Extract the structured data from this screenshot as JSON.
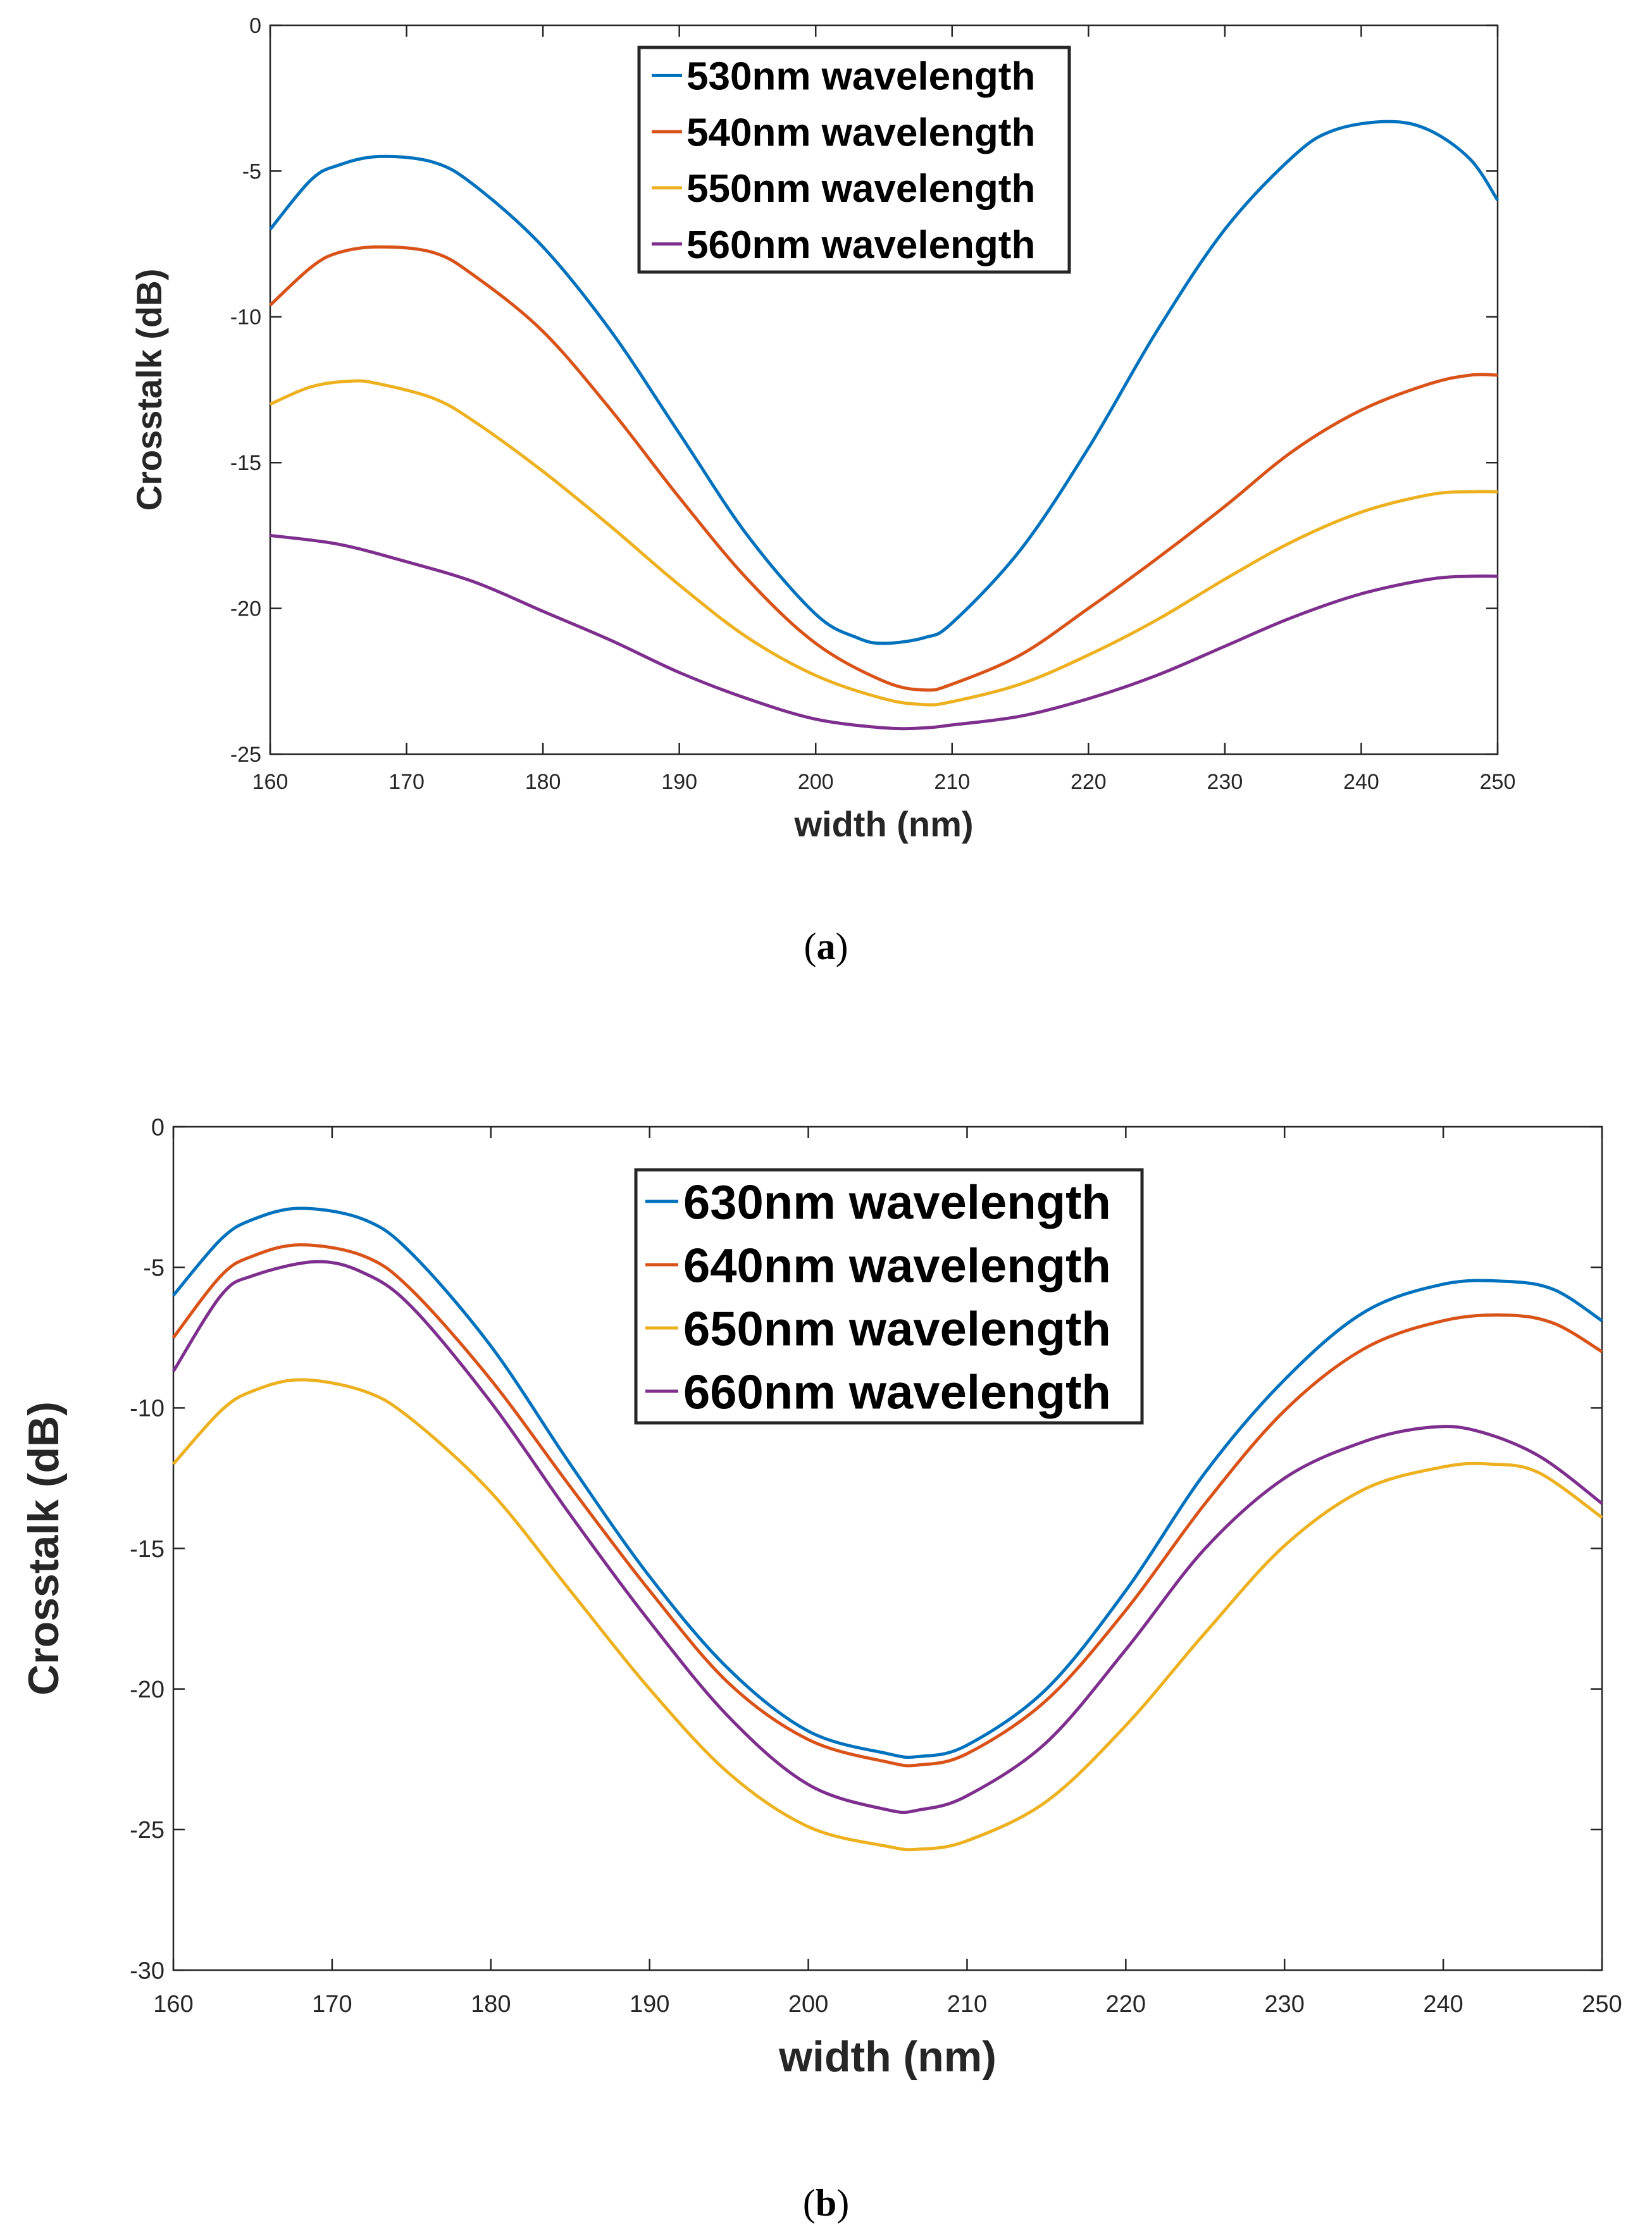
{
  "chart_data": [
    {
      "type": "line",
      "panel_label": "a",
      "xlabel": "width (nm)",
      "ylabel": "Crosstalk (dB)",
      "xlim": [
        160,
        250
      ],
      "ylim": [
        -25,
        0
      ],
      "xticks": [
        160,
        170,
        180,
        190,
        200,
        210,
        220,
        230,
        240,
        250
      ],
      "yticks": [
        0,
        -5,
        -10,
        -15,
        -20,
        -25
      ],
      "grid": false,
      "legend_position": "top-center",
      "series": [
        {
          "name": "530nm wavelength",
          "color": "#0072BD",
          "x": [
            160,
            163,
            165,
            168,
            172,
            175,
            180,
            185,
            190,
            195,
            200,
            203,
            205,
            208,
            210,
            215,
            220,
            225,
            230,
            235,
            238,
            242,
            245,
            248,
            250
          ],
          "y": [
            -7.0,
            -5.3,
            -4.8,
            -4.5,
            -4.7,
            -5.5,
            -7.6,
            -10.5,
            -14.0,
            -17.5,
            -20.2,
            -21.0,
            -21.2,
            -21.0,
            -20.5,
            -18.0,
            -14.5,
            -10.5,
            -7.0,
            -4.5,
            -3.6,
            -3.3,
            -3.6,
            -4.6,
            -6.0
          ]
        },
        {
          "name": "540nm wavelength",
          "color": "#D95319",
          "x": [
            160,
            163,
            165,
            168,
            172,
            175,
            180,
            185,
            190,
            195,
            200,
            205,
            208,
            210,
            215,
            220,
            225,
            230,
            235,
            240,
            245,
            248,
            250
          ],
          "y": [
            -9.6,
            -8.3,
            -7.8,
            -7.6,
            -7.8,
            -8.6,
            -10.5,
            -13.2,
            -16.2,
            -19.0,
            -21.2,
            -22.5,
            -22.8,
            -22.6,
            -21.6,
            -20.0,
            -18.3,
            -16.5,
            -14.6,
            -13.2,
            -12.3,
            -12.0,
            -12.0
          ]
        },
        {
          "name": "550nm wavelength",
          "color": "#EDB120",
          "x": [
            160,
            163,
            166,
            168,
            172,
            175,
            180,
            185,
            190,
            195,
            200,
            205,
            208,
            210,
            215,
            220,
            225,
            230,
            235,
            240,
            245,
            248,
            250
          ],
          "y": [
            -13.0,
            -12.4,
            -12.2,
            -12.3,
            -12.8,
            -13.6,
            -15.3,
            -17.2,
            -19.2,
            -21.0,
            -22.3,
            -23.1,
            -23.3,
            -23.2,
            -22.6,
            -21.6,
            -20.4,
            -19.0,
            -17.7,
            -16.7,
            -16.1,
            -16.0,
            -16.0
          ]
        },
        {
          "name": "560nm wavelength",
          "color": "#7E2F8E",
          "x": [
            160,
            165,
            170,
            175,
            180,
            185,
            190,
            195,
            200,
            205,
            208,
            210,
            215,
            220,
            225,
            230,
            235,
            240,
            245,
            248,
            250
          ],
          "y": [
            -17.5,
            -17.8,
            -18.4,
            -19.1,
            -20.1,
            -21.1,
            -22.2,
            -23.1,
            -23.8,
            -24.1,
            -24.1,
            -24.0,
            -23.7,
            -23.1,
            -22.3,
            -21.3,
            -20.3,
            -19.5,
            -19.0,
            -18.9,
            -18.9
          ]
        }
      ]
    },
    {
      "type": "line",
      "panel_label": "b",
      "xlabel": "width (nm)",
      "ylabel": "Crosstalk (dB)",
      "xlim": [
        160,
        250
      ],
      "ylim": [
        -30,
        0
      ],
      "xticks": [
        160,
        170,
        180,
        190,
        200,
        210,
        220,
        230,
        240,
        250
      ],
      "yticks": [
        0,
        -5,
        -10,
        -15,
        -20,
        -25,
        -30
      ],
      "grid": false,
      "legend_position": "top-center",
      "series": [
        {
          "name": "630nm wavelength",
          "color": "#0072BD",
          "x": [
            160,
            163,
            165,
            168,
            172,
            175,
            180,
            185,
            190,
            195,
            200,
            205,
            207,
            210,
            215,
            220,
            225,
            230,
            235,
            240,
            244,
            247,
            250
          ],
          "y": [
            -6.0,
            -4.0,
            -3.3,
            -2.9,
            -3.3,
            -4.5,
            -7.8,
            -12.0,
            -16.0,
            -19.3,
            -21.5,
            -22.3,
            -22.4,
            -22.0,
            -20.0,
            -16.5,
            -12.3,
            -9.0,
            -6.6,
            -5.6,
            -5.5,
            -5.8,
            -6.9
          ]
        },
        {
          "name": "640nm wavelength",
          "color": "#D95319",
          "x": [
            160,
            163,
            165,
            168,
            172,
            175,
            180,
            185,
            190,
            195,
            200,
            205,
            207,
            210,
            215,
            220,
            225,
            230,
            235,
            240,
            244,
            247,
            250
          ],
          "y": [
            -7.5,
            -5.3,
            -4.6,
            -4.2,
            -4.6,
            -5.8,
            -9.0,
            -12.8,
            -16.5,
            -19.8,
            -21.8,
            -22.6,
            -22.7,
            -22.3,
            -20.4,
            -17.2,
            -13.4,
            -10.1,
            -7.9,
            -6.9,
            -6.7,
            -7.0,
            -8.0
          ]
        },
        {
          "name": "650nm wavelength",
          "color": "#EDB120",
          "x": [
            160,
            163,
            165,
            168,
            172,
            175,
            180,
            185,
            190,
            195,
            200,
            205,
            207,
            210,
            215,
            220,
            225,
            230,
            235,
            240,
            243,
            246,
            250
          ],
          "y": [
            -12.0,
            -10.1,
            -9.4,
            -9.0,
            -9.4,
            -10.4,
            -13.0,
            -16.5,
            -20.0,
            -23.0,
            -24.9,
            -25.6,
            -25.7,
            -25.4,
            -24.0,
            -21.3,
            -18.0,
            -14.9,
            -12.9,
            -12.1,
            -12.0,
            -12.3,
            -13.9
          ]
        },
        {
          "name": "660nm wavelength",
          "color": "#7E2F8E",
          "x": [
            160,
            163,
            165,
            169,
            172,
            175,
            180,
            185,
            190,
            195,
            200,
            205,
            207,
            210,
            215,
            220,
            225,
            230,
            235,
            239,
            242,
            246,
            250
          ],
          "y": [
            -8.7,
            -6.0,
            -5.3,
            -4.8,
            -5.2,
            -6.4,
            -9.8,
            -13.8,
            -17.6,
            -21.0,
            -23.4,
            -24.3,
            -24.3,
            -23.8,
            -21.9,
            -18.6,
            -15.0,
            -12.5,
            -11.2,
            -10.7,
            -10.8,
            -11.7,
            -13.4
          ]
        }
      ]
    }
  ]
}
